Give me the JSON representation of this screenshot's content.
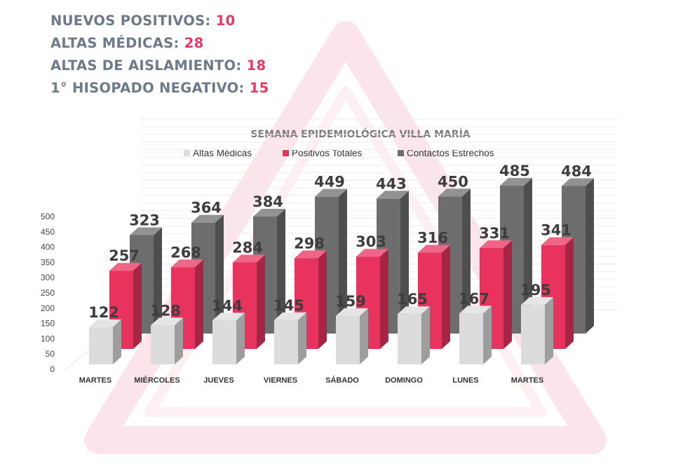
{
  "stats": [
    {
      "label": "NUEVOS POSITIVOS:",
      "value": "10"
    },
    {
      "label": "ALTAS MÉDICAS:",
      "value": "28"
    },
    {
      "label": "ALTAS DE AISLAMIENTO:",
      "value": "18"
    },
    {
      "label": "1° HISOPADO NEGATIVO:",
      "value": "15"
    }
  ],
  "colors": {
    "stat_label": "#6c7a89",
    "stat_value": "#e23a64",
    "altas": "#dcdcdc",
    "positivos": "#e8335f",
    "contactos": "#6d6d6d"
  },
  "chart_data": {
    "type": "bar",
    "title": "SEMANA EPIDEMIOLÓGICA VILLA MARÍA",
    "categories": [
      "MARTES",
      "MIÉRCOLES",
      "JUEVES",
      "VIERNES",
      "SÁBADO",
      "DOMINGO",
      "LUNES",
      "MARTES"
    ],
    "series": [
      {
        "name": "Altas Médicas",
        "values": [
          122,
          128,
          144,
          145,
          159,
          165,
          167,
          195
        ]
      },
      {
        "name": "Positivos Totales",
        "values": [
          257,
          268,
          284,
          298,
          303,
          316,
          331,
          341
        ]
      },
      {
        "name": "Contactos Estrechos",
        "values": [
          323,
          364,
          384,
          449,
          443,
          450,
          485,
          484
        ]
      }
    ],
    "yticks": [
      0,
      50,
      100,
      150,
      200,
      250,
      300,
      350,
      400,
      450,
      500
    ],
    "ylim": [
      0,
      500
    ],
    "legend_position": "top",
    "grid": true
  }
}
